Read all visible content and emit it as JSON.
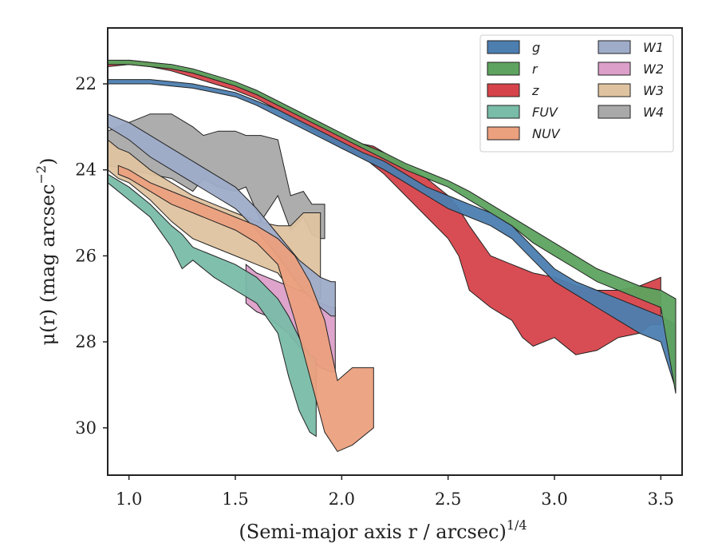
{
  "chart_data": {
    "type": "area",
    "xlabel": "(Semi-major axis r / arcsec)",
    "xlabel_exponent": "1/4",
    "ylabel": "μ(r) (mag arcsec",
    "ylabel_exponent": "−2",
    "ylabel_close": ")",
    "xlim": [
      0.9,
      3.6
    ],
    "ylim": [
      31.1,
      20.7
    ],
    "y_inverted": true,
    "grid": false,
    "legend_position": "top-right",
    "legend_columns": 2,
    "x_ticks": [
      1.0,
      1.5,
      2.0,
      2.5,
      3.0,
      3.5
    ],
    "x_tick_labels": [
      "1.0",
      "1.5",
      "2.0",
      "2.5",
      "3.0",
      "3.5"
    ],
    "y_ticks": [
      22,
      24,
      26,
      28,
      30
    ],
    "y_tick_labels": [
      "22",
      "24",
      "26",
      "28",
      "30"
    ],
    "series": [
      {
        "name": "W4",
        "color": "#a9a9a9",
        "x": [
          0.9,
          1.1,
          1.2,
          1.3,
          1.35,
          1.42,
          1.5,
          1.55,
          1.62,
          1.7,
          1.76,
          1.82,
          1.86,
          1.9,
          1.92
        ],
        "lo": [
          23.1,
          22.7,
          22.7,
          23.0,
          23.2,
          23.1,
          23.1,
          23.2,
          23.2,
          23.3,
          24.6,
          24.5,
          24.8,
          24.8,
          24.8
        ],
        "hi": [
          23.9,
          24.1,
          24.2,
          24.5,
          24.2,
          24.4,
          24.5,
          24.4,
          25.2,
          24.6,
          25.4,
          25.1,
          25.5,
          25.6,
          25.6
        ]
      },
      {
        "name": "W3",
        "color": "#dfc3a0",
        "x": [
          0.9,
          0.95,
          1.0,
          1.1,
          1.2,
          1.3,
          1.4,
          1.5,
          1.6,
          1.7,
          1.76,
          1.82,
          1.88,
          1.9
        ],
        "lo": [
          23.3,
          23.5,
          23.6,
          24.0,
          24.3,
          24.6,
          24.8,
          25.0,
          25.2,
          25.3,
          25.3,
          25.0,
          25.0,
          25.0
        ],
        "hi": [
          24.0,
          24.2,
          24.3,
          24.7,
          25.2,
          25.6,
          25.8,
          26.0,
          26.2,
          26.4,
          26.8,
          26.8,
          27.0,
          27.0
        ]
      },
      {
        "name": "W2",
        "color": "#dc9fc9",
        "x": [
          1.55,
          1.6,
          1.65,
          1.7,
          1.75,
          1.8,
          1.85,
          1.9,
          1.95,
          1.97
        ],
        "lo": [
          26.2,
          26.4,
          26.5,
          26.6,
          26.7,
          26.8,
          26.9,
          27.1,
          27.2,
          27.2
        ],
        "hi": [
          27.1,
          27.3,
          27.4,
          27.6,
          27.8,
          28.1,
          28.4,
          28.6,
          28.7,
          28.7
        ]
      },
      {
        "name": "W1",
        "color": "#9eacc9",
        "x": [
          0.9,
          1.0,
          1.1,
          1.2,
          1.3,
          1.4,
          1.5,
          1.6,
          1.7,
          1.8,
          1.9,
          1.95,
          1.97
        ],
        "lo": [
          22.7,
          22.9,
          23.2,
          23.5,
          23.8,
          24.1,
          24.4,
          24.9,
          25.5,
          26.1,
          26.5,
          26.6,
          26.6
        ],
        "hi": [
          23.0,
          23.3,
          23.7,
          24.0,
          24.3,
          24.6,
          24.9,
          25.4,
          26.0,
          26.7,
          27.2,
          27.4,
          27.4
        ]
      },
      {
        "name": "FUV",
        "color": "#79bca8",
        "x": [
          0.9,
          1.0,
          1.1,
          1.2,
          1.25,
          1.3,
          1.4,
          1.5,
          1.6,
          1.7,
          1.75,
          1.8,
          1.85,
          1.88
        ],
        "lo": [
          24.1,
          24.4,
          24.8,
          25.3,
          25.5,
          25.8,
          26.0,
          26.2,
          26.5,
          27.0,
          27.4,
          27.9,
          28.3,
          28.4
        ],
        "hi": [
          24.3,
          24.7,
          25.1,
          25.8,
          26.3,
          26.1,
          26.5,
          26.8,
          27.1,
          27.8,
          28.8,
          29.6,
          30.1,
          30.2
        ]
      },
      {
        "name": "NUV",
        "color": "#eba07e",
        "x": [
          0.95,
          1.0,
          1.1,
          1.2,
          1.3,
          1.4,
          1.5,
          1.6,
          1.7,
          1.78,
          1.85,
          1.92,
          1.98,
          2.05,
          2.15
        ],
        "lo": [
          23.9,
          24.0,
          24.3,
          24.5,
          24.7,
          24.9,
          25.1,
          25.3,
          25.6,
          26.0,
          26.6,
          27.5,
          28.9,
          28.6,
          28.6
        ],
        "hi": [
          24.1,
          24.2,
          24.5,
          24.8,
          25.0,
          25.2,
          25.4,
          25.7,
          26.2,
          27.5,
          28.8,
          30.1,
          30.55,
          30.4,
          30.0
        ]
      },
      {
        "name": "z",
        "color": "#d6434a",
        "x": [
          0.9,
          1.0,
          1.1,
          1.2,
          1.3,
          1.4,
          1.5,
          1.6,
          1.7,
          1.8,
          1.9,
          2.0,
          2.1,
          2.15,
          2.2,
          2.3,
          2.4,
          2.5,
          2.55,
          2.6,
          2.7,
          2.8,
          2.85,
          2.9,
          3.0,
          3.1,
          3.2,
          3.3,
          3.4,
          3.45,
          3.5
        ],
        "lo": [
          21.5,
          21.45,
          21.5,
          21.6,
          21.7,
          21.85,
          22.0,
          22.2,
          22.45,
          22.7,
          22.95,
          23.2,
          23.4,
          23.45,
          23.6,
          23.9,
          24.2,
          24.6,
          24.9,
          25.3,
          26.0,
          26.2,
          26.3,
          26.4,
          26.5,
          26.7,
          26.8,
          26.8,
          26.7,
          26.6,
          26.5
        ],
        "hi": [
          21.6,
          21.55,
          21.6,
          21.7,
          21.85,
          22.0,
          22.15,
          22.35,
          22.6,
          22.9,
          23.2,
          23.5,
          23.7,
          23.9,
          24.1,
          24.6,
          25.1,
          25.6,
          26.0,
          26.8,
          27.2,
          27.5,
          27.9,
          28.1,
          27.9,
          28.3,
          28.2,
          27.9,
          27.8,
          27.6,
          27.6
        ]
      },
      {
        "name": "g",
        "color": "#4c7eb0",
        "x": [
          0.9,
          1.0,
          1.1,
          1.2,
          1.3,
          1.4,
          1.5,
          1.6,
          1.7,
          1.8,
          1.9,
          2.0,
          2.1,
          2.2,
          2.3,
          2.4,
          2.5,
          2.6,
          2.7,
          2.8,
          2.9,
          3.0,
          3.1,
          3.2,
          3.3,
          3.4,
          3.5,
          3.57
        ],
        "lo": [
          21.9,
          21.9,
          21.9,
          21.95,
          22.0,
          22.1,
          22.2,
          22.4,
          22.6,
          22.85,
          23.1,
          23.35,
          23.6,
          23.8,
          24.1,
          24.4,
          24.6,
          24.8,
          25.0,
          25.3,
          25.8,
          26.3,
          26.6,
          26.8,
          27.0,
          27.2,
          27.4,
          27.6
        ],
        "hi": [
          22.0,
          22.0,
          22.0,
          22.05,
          22.1,
          22.2,
          22.3,
          22.5,
          22.75,
          23.0,
          23.25,
          23.5,
          23.75,
          24.0,
          24.3,
          24.6,
          24.9,
          25.1,
          25.3,
          25.6,
          26.1,
          26.6,
          26.9,
          27.2,
          27.5,
          27.8,
          28.0,
          29.1
        ]
      },
      {
        "name": "r",
        "color": "#5ea35f",
        "x": [
          0.9,
          1.0,
          1.1,
          1.2,
          1.3,
          1.4,
          1.5,
          1.6,
          1.7,
          1.8,
          1.9,
          2.0,
          2.1,
          2.2,
          2.3,
          2.4,
          2.5,
          2.6,
          2.7,
          2.8,
          2.9,
          3.0,
          3.1,
          3.2,
          3.3,
          3.4,
          3.5,
          3.57
        ],
        "lo": [
          21.45,
          21.45,
          21.5,
          21.55,
          21.65,
          21.8,
          21.95,
          22.15,
          22.4,
          22.65,
          22.9,
          23.15,
          23.4,
          23.6,
          23.85,
          24.05,
          24.25,
          24.5,
          24.8,
          25.1,
          25.4,
          25.7,
          26.0,
          26.3,
          26.5,
          26.7,
          26.8,
          27.0
        ],
        "hi": [
          21.55,
          21.55,
          21.6,
          21.65,
          21.75,
          21.9,
          22.05,
          22.25,
          22.5,
          22.75,
          23.0,
          23.25,
          23.5,
          23.75,
          24.0,
          24.2,
          24.4,
          24.7,
          25.0,
          25.3,
          25.7,
          26.0,
          26.3,
          26.6,
          26.8,
          27.0,
          27.2,
          29.2
        ]
      }
    ],
    "legend": [
      "g",
      "r",
      "z",
      "FUV",
      "NUV",
      "W1",
      "W2",
      "W3",
      "W4"
    ]
  }
}
